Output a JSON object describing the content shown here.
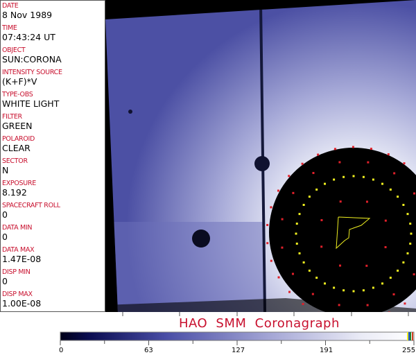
{
  "panel": {
    "fields": [
      {
        "label": "DATE",
        "value": "8 Nov 1989"
      },
      {
        "label": "TIME",
        "value": "07:43:24 UT"
      },
      {
        "label": "OBJECT",
        "value": "SUN:CORONA"
      },
      {
        "label": "INTENSITY SOURCE",
        "value": "(K+F)*V"
      },
      {
        "label": "TYPE-OBS",
        "value": "WHITE LIGHT"
      },
      {
        "label": "FILTER",
        "value": "GREEN"
      },
      {
        "label": "POLAROID",
        "value": "CLEAR"
      },
      {
        "label": "SECTOR",
        "value": "N"
      },
      {
        "label": "EXPOSURE",
        "value": "8.192"
      },
      {
        "label": "SPACECRAFT ROLL",
        "value": "0"
      },
      {
        "label": "DATA MIN",
        "value": "0"
      },
      {
        "label": "DATA MAX",
        "value": "1.47E-08"
      },
      {
        "label": "DISP MIN",
        "value": "0"
      },
      {
        "label": "DISP MAX",
        "value": "1.00E-08"
      }
    ]
  },
  "title": "HAO  SMM Coronagraph",
  "colorbar": {
    "ticks": [
      "0",
      "63",
      "127",
      "191",
      "255"
    ],
    "colors": {
      "low": "#000018",
      "mid": "#5a5eb0",
      "high": "#ffffff"
    }
  },
  "colors": {
    "label": "#c8102e",
    "overlay_red": "#e0202a",
    "overlay_yellow": "#f0f020"
  }
}
